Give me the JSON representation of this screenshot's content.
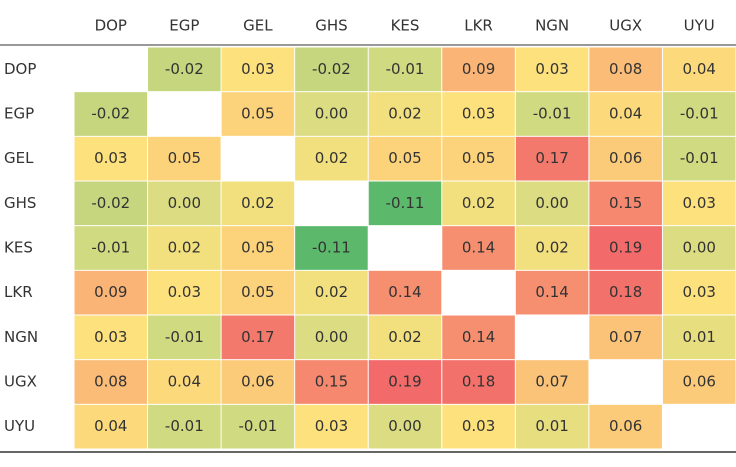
{
  "chart_data": {
    "type": "heatmap",
    "columns": [
      "DOP",
      "EGP",
      "GEL",
      "GHS",
      "KES",
      "LKR",
      "NGN",
      "UGX",
      "UYU"
    ],
    "rows": [
      "DOP",
      "EGP",
      "GEL",
      "GHS",
      "KES",
      "LKR",
      "NGN",
      "UGX",
      "UYU"
    ],
    "values": [
      [
        null,
        -0.02,
        0.03,
        -0.02,
        -0.01,
        0.09,
        0.03,
        0.08,
        0.04
      ],
      [
        -0.02,
        null,
        0.05,
        0.0,
        0.02,
        0.03,
        -0.01,
        0.04,
        -0.01
      ],
      [
        0.03,
        0.05,
        null,
        0.02,
        0.05,
        0.05,
        0.17,
        0.06,
        -0.01
      ],
      [
        -0.02,
        0.0,
        0.02,
        null,
        -0.11,
        0.02,
        0.0,
        0.15,
        0.03
      ],
      [
        -0.01,
        0.02,
        0.05,
        -0.11,
        null,
        0.14,
        0.02,
        0.19,
        0.0
      ],
      [
        0.09,
        0.03,
        0.05,
        0.02,
        0.14,
        null,
        0.14,
        0.18,
        0.03
      ],
      [
        0.03,
        -0.01,
        0.17,
        0.0,
        0.02,
        0.14,
        null,
        0.07,
        0.01
      ],
      [
        0.08,
        0.04,
        0.06,
        0.15,
        0.19,
        0.18,
        0.07,
        null,
        0.06
      ],
      [
        0.04,
        -0.01,
        -0.01,
        0.03,
        0.0,
        0.03,
        0.01,
        0.06,
        null
      ]
    ],
    "labels": [
      [
        "",
        "-0.02",
        "0.03",
        "-0.02",
        "-0.01",
        "0.09",
        "0.03",
        "0.08",
        "0.04"
      ],
      [
        "-0.02",
        "",
        "0.05",
        "0.00",
        "0.02",
        "0.03",
        "-0.01",
        "0.04",
        "-0.01"
      ],
      [
        "0.03",
        "0.05",
        "",
        "0.02",
        "0.05",
        "0.05",
        "0.17",
        "0.06",
        "-0.01"
      ],
      [
        "-0.02",
        "0.00",
        "0.02",
        "",
        "-0.11",
        "0.02",
        "0.00",
        "0.15",
        "0.03"
      ],
      [
        "-0.01",
        "0.02",
        "0.05",
        "-0.11",
        "",
        "0.14",
        "0.02",
        "0.19",
        "0.00"
      ],
      [
        "0.09",
        "0.03",
        "0.05",
        "0.02",
        "0.14",
        "",
        "0.14",
        "0.18",
        "0.03"
      ],
      [
        "0.03",
        "-0.01",
        "0.17",
        "0.00",
        "0.02",
        "0.14",
        "",
        "0.07",
        "0.01"
      ],
      [
        "0.08",
        "0.04",
        "0.06",
        "0.15",
        "0.19",
        "0.18",
        "0.07",
        "",
        "0.06"
      ],
      [
        "0.04",
        "-0.01",
        "-0.01",
        "0.03",
        "0.00",
        "0.03",
        "0.01",
        "0.06",
        ""
      ]
    ],
    "color_scale": {
      "domain": [
        -0.11,
        0.0,
        0.03,
        0.19
      ],
      "colors": [
        "#5cb96c",
        "#dcdd82",
        "#fde17d",
        "#f26a6a"
      ]
    },
    "diagonal": "blank",
    "legend": "none",
    "grid": false
  }
}
